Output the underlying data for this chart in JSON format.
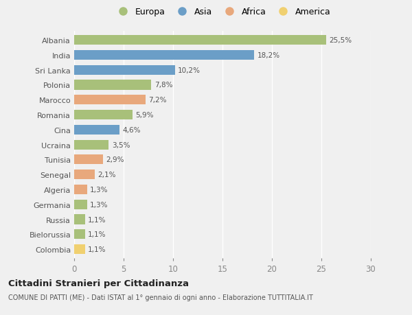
{
  "countries": [
    "Albania",
    "India",
    "Sri Lanka",
    "Polonia",
    "Marocco",
    "Romania",
    "Cina",
    "Ucraina",
    "Tunisia",
    "Senegal",
    "Algeria",
    "Germania",
    "Russia",
    "Bielorussia",
    "Colombia"
  ],
  "values": [
    25.5,
    18.2,
    10.2,
    7.8,
    7.2,
    5.9,
    4.6,
    3.5,
    2.9,
    2.1,
    1.3,
    1.3,
    1.1,
    1.1,
    1.1
  ],
  "labels": [
    "25,5%",
    "18,2%",
    "10,2%",
    "7,8%",
    "7,2%",
    "5,9%",
    "4,6%",
    "3,5%",
    "2,9%",
    "2,1%",
    "1,3%",
    "1,3%",
    "1,1%",
    "1,1%",
    "1,1%"
  ],
  "continents": [
    "Europa",
    "Asia",
    "Asia",
    "Europa",
    "Africa",
    "Europa",
    "Asia",
    "Europa",
    "Africa",
    "Africa",
    "Africa",
    "Europa",
    "Europa",
    "Europa",
    "America"
  ],
  "continent_colors": {
    "Europa": "#a8c07a",
    "Asia": "#6b9ec7",
    "Africa": "#e8a87c",
    "America": "#f0d070"
  },
  "legend_order": [
    "Europa",
    "Asia",
    "Africa",
    "America"
  ],
  "background_color": "#f0f0f0",
  "title": "Cittadini Stranieri per Cittadinanza",
  "subtitle": "COMUNE DI PATTI (ME) - Dati ISTAT al 1° gennaio di ogni anno - Elaborazione TUTTITALIA.IT",
  "xlim": [
    0,
    30
  ],
  "xticks": [
    0,
    5,
    10,
    15,
    20,
    25,
    30
  ]
}
